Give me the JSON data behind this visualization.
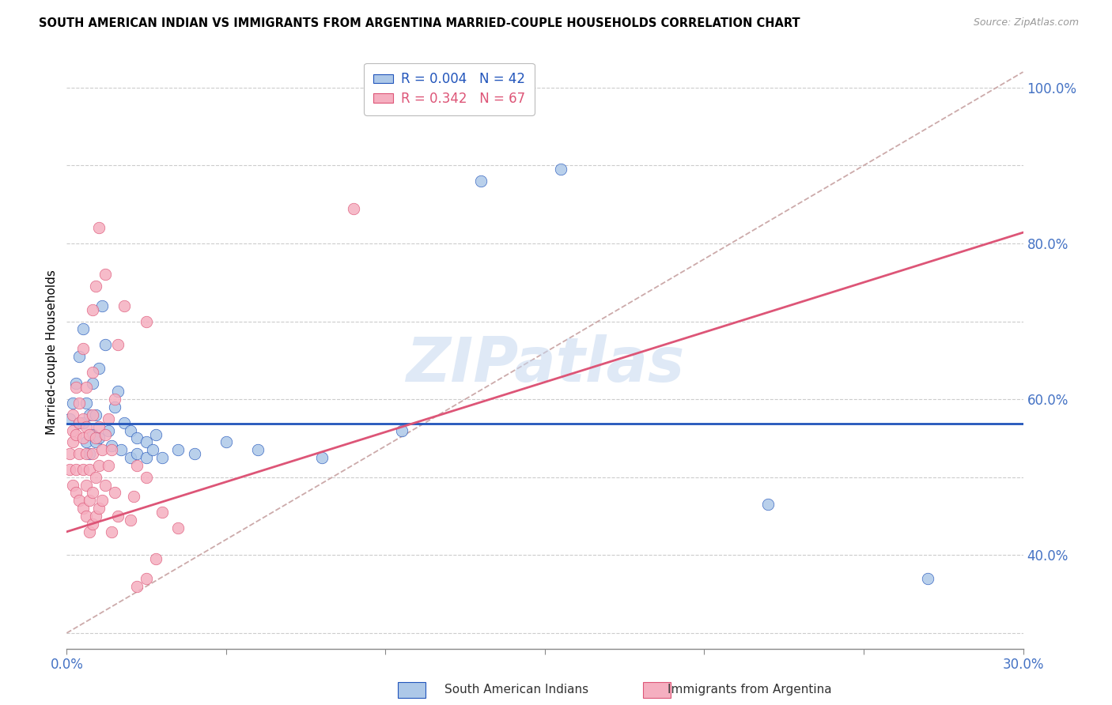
{
  "title": "SOUTH AMERICAN INDIAN VS IMMIGRANTS FROM ARGENTINA MARRIED-COUPLE HOUSEHOLDS CORRELATION CHART",
  "source": "Source: ZipAtlas.com",
  "ylabel": "Married-couple Households",
  "xlim": [
    0.0,
    0.3
  ],
  "ylim": [
    0.28,
    1.04
  ],
  "xticks": [
    0.0,
    0.05,
    0.1,
    0.15,
    0.2,
    0.25,
    0.3
  ],
  "xticklabels": [
    "0.0%",
    "",
    "",
    "",
    "",
    "",
    "30.0%"
  ],
  "yticks": [
    0.3,
    0.4,
    0.5,
    0.6,
    0.7,
    0.8,
    0.9,
    1.0
  ],
  "yticklabels": [
    "",
    "40.0%",
    "",
    "60.0%",
    "",
    "80.0%",
    "",
    "100.0%"
  ],
  "blue_R": 0.004,
  "blue_N": 42,
  "pink_R": 0.342,
  "pink_N": 67,
  "blue_color": "#adc8e8",
  "pink_color": "#f5afc0",
  "blue_line_color": "#2255bb",
  "pink_line_color": "#dd5577",
  "diagonal_color": "#ccaaaa",
  "watermark": "ZIPatlas",
  "blue_line_y_intercept": 0.569,
  "blue_line_slope": 0.0,
  "pink_line_y_intercept": 0.43,
  "pink_line_slope": 1.28,
  "blue_points": [
    [
      0.001,
      0.575
    ],
    [
      0.002,
      0.595
    ],
    [
      0.003,
      0.62
    ],
    [
      0.004,
      0.655
    ],
    [
      0.004,
      0.57
    ],
    [
      0.005,
      0.69
    ],
    [
      0.005,
      0.57
    ],
    [
      0.006,
      0.545
    ],
    [
      0.006,
      0.595
    ],
    [
      0.007,
      0.53
    ],
    [
      0.007,
      0.58
    ],
    [
      0.008,
      0.555
    ],
    [
      0.008,
      0.62
    ],
    [
      0.009,
      0.545
    ],
    [
      0.009,
      0.58
    ],
    [
      0.01,
      0.55
    ],
    [
      0.01,
      0.64
    ],
    [
      0.011,
      0.72
    ],
    [
      0.012,
      0.67
    ],
    [
      0.013,
      0.56
    ],
    [
      0.014,
      0.54
    ],
    [
      0.015,
      0.59
    ],
    [
      0.016,
      0.61
    ],
    [
      0.017,
      0.535
    ],
    [
      0.018,
      0.57
    ],
    [
      0.02,
      0.525
    ],
    [
      0.02,
      0.56
    ],
    [
      0.022,
      0.55
    ],
    [
      0.022,
      0.53
    ],
    [
      0.025,
      0.545
    ],
    [
      0.025,
      0.525
    ],
    [
      0.027,
      0.535
    ],
    [
      0.028,
      0.555
    ],
    [
      0.03,
      0.525
    ],
    [
      0.035,
      0.535
    ],
    [
      0.04,
      0.53
    ],
    [
      0.05,
      0.545
    ],
    [
      0.06,
      0.535
    ],
    [
      0.08,
      0.525
    ],
    [
      0.105,
      0.56
    ],
    [
      0.13,
      0.88
    ],
    [
      0.155,
      0.895
    ],
    [
      0.22,
      0.465
    ],
    [
      0.27,
      0.37
    ]
  ],
  "pink_points": [
    [
      0.001,
      0.51
    ],
    [
      0.001,
      0.53
    ],
    [
      0.002,
      0.49
    ],
    [
      0.002,
      0.545
    ],
    [
      0.002,
      0.56
    ],
    [
      0.002,
      0.58
    ],
    [
      0.003,
      0.48
    ],
    [
      0.003,
      0.51
    ],
    [
      0.003,
      0.555
    ],
    [
      0.003,
      0.615
    ],
    [
      0.004,
      0.47
    ],
    [
      0.004,
      0.53
    ],
    [
      0.004,
      0.57
    ],
    [
      0.004,
      0.595
    ],
    [
      0.005,
      0.46
    ],
    [
      0.005,
      0.51
    ],
    [
      0.005,
      0.55
    ],
    [
      0.005,
      0.575
    ],
    [
      0.005,
      0.665
    ],
    [
      0.006,
      0.45
    ],
    [
      0.006,
      0.49
    ],
    [
      0.006,
      0.53
    ],
    [
      0.006,
      0.565
    ],
    [
      0.006,
      0.615
    ],
    [
      0.007,
      0.43
    ],
    [
      0.007,
      0.47
    ],
    [
      0.007,
      0.51
    ],
    [
      0.007,
      0.555
    ],
    [
      0.008,
      0.44
    ],
    [
      0.008,
      0.48
    ],
    [
      0.008,
      0.53
    ],
    [
      0.008,
      0.58
    ],
    [
      0.008,
      0.635
    ],
    [
      0.008,
      0.715
    ],
    [
      0.009,
      0.45
    ],
    [
      0.009,
      0.5
    ],
    [
      0.009,
      0.55
    ],
    [
      0.009,
      0.745
    ],
    [
      0.01,
      0.46
    ],
    [
      0.01,
      0.515
    ],
    [
      0.01,
      0.565
    ],
    [
      0.01,
      0.82
    ],
    [
      0.011,
      0.47
    ],
    [
      0.011,
      0.535
    ],
    [
      0.012,
      0.49
    ],
    [
      0.012,
      0.555
    ],
    [
      0.012,
      0.76
    ],
    [
      0.013,
      0.515
    ],
    [
      0.013,
      0.575
    ],
    [
      0.014,
      0.43
    ],
    [
      0.014,
      0.535
    ],
    [
      0.015,
      0.48
    ],
    [
      0.015,
      0.6
    ],
    [
      0.016,
      0.45
    ],
    [
      0.016,
      0.67
    ],
    [
      0.018,
      0.72
    ],
    [
      0.02,
      0.445
    ],
    [
      0.021,
      0.475
    ],
    [
      0.022,
      0.36
    ],
    [
      0.022,
      0.515
    ],
    [
      0.025,
      0.37
    ],
    [
      0.025,
      0.5
    ],
    [
      0.025,
      0.7
    ],
    [
      0.028,
      0.395
    ],
    [
      0.03,
      0.455
    ],
    [
      0.035,
      0.435
    ],
    [
      0.09,
      0.845
    ]
  ]
}
